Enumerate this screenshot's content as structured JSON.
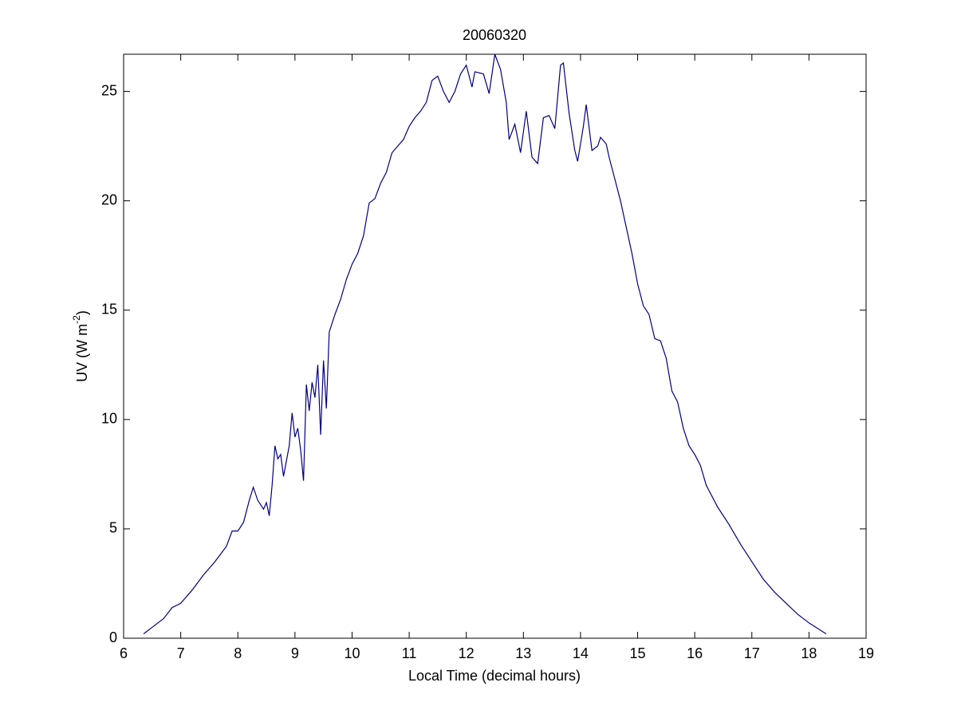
{
  "chart_data": {
    "type": "line",
    "title": "20060320",
    "x_label": "Local Time (decimal hours)",
    "y_label_parts": [
      "UV (W m",
      "-2",
      ")"
    ],
    "xlim": [
      6,
      19
    ],
    "xticks": [
      6,
      7,
      8,
      9,
      10,
      11,
      12,
      13,
      14,
      15,
      16,
      17,
      18,
      19
    ],
    "ylim": [
      0,
      26.7
    ],
    "yticks": [
      0,
      5,
      10,
      15,
      20,
      25
    ],
    "series": [
      {
        "color": "#000080",
        "x": [
          6.35,
          6.5,
          6.7,
          6.85,
          7.0,
          7.2,
          7.4,
          7.6,
          7.8,
          7.9,
          8.0,
          8.1,
          8.2,
          8.27,
          8.35,
          8.45,
          8.5,
          8.55,
          8.6,
          8.65,
          8.7,
          8.75,
          8.8,
          8.9,
          8.95,
          9.0,
          9.05,
          9.1,
          9.15,
          9.2,
          9.25,
          9.3,
          9.35,
          9.4,
          9.45,
          9.5,
          9.55,
          9.6,
          9.7,
          9.8,
          9.9,
          10.0,
          10.1,
          10.2,
          10.3,
          10.4,
          10.5,
          10.6,
          10.7,
          10.8,
          10.9,
          11.0,
          11.1,
          11.2,
          11.3,
          11.4,
          11.5,
          11.6,
          11.7,
          11.8,
          11.9,
          12.0,
          12.1,
          12.15,
          12.3,
          12.4,
          12.5,
          12.6,
          12.7,
          12.75,
          12.85,
          12.95,
          13.05,
          13.15,
          13.25,
          13.35,
          13.45,
          13.55,
          13.65,
          13.7,
          13.8,
          13.9,
          13.95,
          14.05,
          14.1,
          14.2,
          14.3,
          14.35,
          14.45,
          14.5,
          14.6,
          14.7,
          14.8,
          14.9,
          15.0,
          15.1,
          15.2,
          15.3,
          15.4,
          15.5,
          15.6,
          15.7,
          15.8,
          15.9,
          16.0,
          16.1,
          16.2,
          16.4,
          16.6,
          16.8,
          17.0,
          17.2,
          17.4,
          17.6,
          17.8,
          18.0,
          18.3
        ],
        "values": [
          0.2,
          0.5,
          0.9,
          1.4,
          1.6,
          2.2,
          2.9,
          3.5,
          4.2,
          4.9,
          4.9,
          5.3,
          6.3,
          6.9,
          6.3,
          5.9,
          6.2,
          5.6,
          7.0,
          8.8,
          8.2,
          8.4,
          7.4,
          8.8,
          10.3,
          9.2,
          9.6,
          8.6,
          7.2,
          11.6,
          10.4,
          11.7,
          11.0,
          12.5,
          9.3,
          12.7,
          10.5,
          14.0,
          14.8,
          15.5,
          16.4,
          17.1,
          17.6,
          18.4,
          19.9,
          20.1,
          20.8,
          21.3,
          22.2,
          22.5,
          22.8,
          23.4,
          23.8,
          24.1,
          24.5,
          25.5,
          25.7,
          25.0,
          24.5,
          25.0,
          25.8,
          26.2,
          25.2,
          25.9,
          25.8,
          24.9,
          26.7,
          26.0,
          24.5,
          22.8,
          23.5,
          22.2,
          24.1,
          22.0,
          21.7,
          23.8,
          23.9,
          23.3,
          26.2,
          26.3,
          24.0,
          22.3,
          21.8,
          23.4,
          24.4,
          22.3,
          22.5,
          22.9,
          22.6,
          22.0,
          21.0,
          20.0,
          18.8,
          17.6,
          16.2,
          15.2,
          14.8,
          13.7,
          13.6,
          12.8,
          11.3,
          10.8,
          9.6,
          8.8,
          8.4,
          7.9,
          7.0,
          6.0,
          5.2,
          4.3,
          3.5,
          2.7,
          2.1,
          1.6,
          1.1,
          0.7,
          0.2
        ]
      }
    ]
  }
}
